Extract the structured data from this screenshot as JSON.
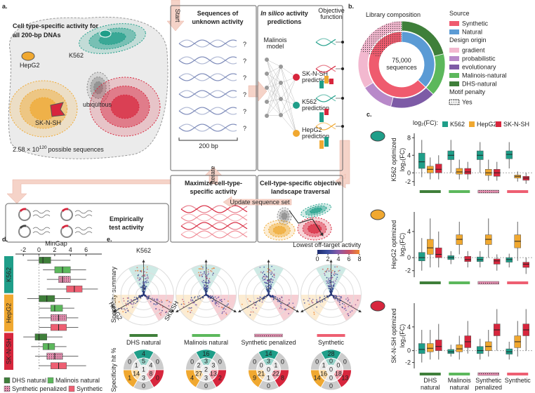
{
  "cells": [
    {
      "name": "K562",
      "color": "#1f9e89"
    },
    {
      "name": "HepG2",
      "color": "#f0a830"
    },
    {
      "name": "SK-N-SH",
      "color": "#d7263d"
    }
  ],
  "groups": [
    {
      "name": "DHS natural",
      "color": "#3f7f3a",
      "dotted": false
    },
    {
      "name": "Malinois natural",
      "color": "#5cb85c",
      "dotted": false
    },
    {
      "name": "Synthetic penalized",
      "color": "#e58fb0",
      "dotted": true
    },
    {
      "name": "Synthetic",
      "color": "#ee5f72",
      "dotted": false
    }
  ],
  "panels": {
    "a": {
      "label": "a.",
      "title_lines": [
        "Cell type-specific activity for",
        "all 200-bp DNAs"
      ],
      "cell_labels": [
        "K562",
        "HepG2",
        "ubiquitous",
        "SK-N-SH"
      ],
      "sequence_count": "2.58 × 10",
      "sequence_exponent": "120",
      "sequence_suffix": "possible sequences",
      "start": "Start",
      "unknown": {
        "title_lines": [
          "Sequences of",
          "unknown activity"
        ],
        "mark": "?",
        "length": "200 bp"
      },
      "in_silico": {
        "title_italic": "In silico",
        "title_rest": "activity",
        "title_line2": "predictions",
        "model_lines": [
          "Malinois",
          "model"
        ],
        "predictions": [
          [
            "SK-N-SH",
            "prediction"
          ],
          [
            "K562",
            "prediction"
          ],
          [
            "HepG2",
            "prediction"
          ]
        ],
        "objective_lines": [
          "Objective",
          "function"
        ]
      },
      "iterate": "Iterate",
      "maximize_lines": [
        "Maximize cell-type-",
        "specific activity"
      ],
      "landscape_lines": [
        "Cell-type-specific objective",
        "landscape traversal"
      ],
      "update": "Update sequence set",
      "test_lines": [
        "Empirically",
        "test activity"
      ]
    },
    "b": {
      "label": "b.",
      "title": "Library composition",
      "center_lines": [
        "75,000",
        "sequences"
      ],
      "source_title": "Source",
      "source": [
        {
          "name": "Synthetic",
          "color": "#ef5b6e",
          "value": 63
        },
        {
          "name": "Natural",
          "color": "#5b9bd5",
          "value": 37
        }
      ],
      "origin_title": "Design origin",
      "origin": [
        {
          "name": "gradient",
          "color": "#f2b8cf",
          "value": 34
        },
        {
          "name": "probabilistic",
          "color": "#b889c9",
          "value": 12
        },
        {
          "name": "evolutionary",
          "color": "#7d5ba6",
          "value": 17
        },
        {
          "name": "Malinois-natural",
          "color": "#5cb85c",
          "value": 16
        },
        {
          "name": "DHS-natural",
          "color": "#3f7f3a",
          "value": 21
        }
      ],
      "penalty_title": "Motif penalty",
      "penalty_label": "Yes",
      "penalty_value": 20
    },
    "c": {
      "label": "c.",
      "legend_title": "log₂(FC):",
      "unit": "log₂(FC)",
      "panels": [
        {
          "ylabel": "K562 optimized",
          "ylim": [
            -3,
            9
          ],
          "yticks": [
            -2,
            0,
            4,
            8
          ],
          "boxes": [
            [
              [
                -1,
                1,
                2.5,
                4.5,
                7.5
              ],
              [
                -1.5,
                0,
                0.8,
                1.5,
                3.5
              ],
              [
                -1.5,
                0,
                0.8,
                2,
                4
              ]
            ],
            [
              [
                0,
                3,
                4,
                5,
                7.5
              ],
              [
                -1.5,
                -0.3,
                0.2,
                1,
                3
              ],
              [
                -1.5,
                -0.3,
                0.2,
                1,
                2.5
              ]
            ],
            [
              [
                0,
                3,
                4,
                5,
                7
              ],
              [
                -1.8,
                -0.6,
                0,
                0.8,
                3
              ],
              [
                -1.8,
                -0.8,
                0,
                0.8,
                2.5
              ]
            ],
            [
              [
                1,
                3.2,
                4.2,
                5,
                7
              ],
              [
                -2,
                -1.2,
                -0.8,
                -0.5,
                0.3
              ],
              [
                -2.5,
                -1.7,
                -1.2,
                -0.8,
                0
              ]
            ]
          ]
        },
        {
          "ylabel": "HepG2 optimized",
          "ylim": [
            -3,
            7
          ],
          "yticks": [
            -2,
            0,
            4
          ],
          "boxes": [
            [
              [
                -2,
                -0.5,
                0,
                0.8,
                3
              ],
              [
                -1.5,
                0.5,
                1.5,
                2.8,
                6
              ],
              [
                -1.5,
                0,
                0.5,
                1.5,
                4
              ]
            ],
            [
              [
                -1,
                -0.3,
                0,
                0.3,
                1
              ],
              [
                0.5,
                2,
                2.8,
                3.5,
                5.5
              ],
              [
                -1.5,
                -0.6,
                -0.3,
                0.2,
                1
              ]
            ],
            [
              [
                -1.5,
                -0.6,
                -0.3,
                0.1,
                1
              ],
              [
                0,
                2,
                2.8,
                3.5,
                6
              ],
              [
                -2,
                -1,
                -0.5,
                -0.2,
                0.5
              ]
            ],
            [
              [
                -1.5,
                -0.7,
                -0.3,
                0,
                0.6
              ],
              [
                -0.5,
                1.5,
                2.5,
                3.5,
                5.5
              ],
              [
                -2.5,
                -1.5,
                -1,
                -0.7,
                0
              ]
            ]
          ]
        },
        {
          "ylabel": "SK-N-SH optimized",
          "ylim": [
            -3,
            8
          ],
          "yticks": [
            -2,
            0,
            4
          ],
          "boxes": [
            [
              [
                -2,
                -0.5,
                0.2,
                1.2,
                3.5
              ],
              [
                -1.5,
                -0.2,
                0.4,
                1.2,
                3.5
              ],
              [
                -1.5,
                0,
                0.7,
                1.8,
                4.5
              ]
            ],
            [
              [
                -1,
                -0.5,
                -0.2,
                0.2,
                1
              ],
              [
                -1.5,
                -0.2,
                0.3,
                1,
                2.5
              ],
              [
                -0.5,
                0.5,
                1.5,
                2.5,
                5
              ]
            ],
            [
              [
                -1.5,
                -0.5,
                0,
                0.7,
                2
              ],
              [
                -1,
                0,
                0.7,
                1.5,
                3.5
              ],
              [
                0,
                2.5,
                3.5,
                4.5,
                7
              ]
            ],
            [
              [
                -1.5,
                -0.6,
                -0.2,
                0.3,
                1.5
              ],
              [
                -1,
                0.5,
                1.5,
                2.5,
                5
              ],
              [
                0,
                2.5,
                3.5,
                4.5,
                7
              ]
            ]
          ]
        }
      ]
    },
    "d": {
      "label": "d.",
      "xlabel": "MinGap",
      "xlim": [
        -3,
        8
      ],
      "xticks": [
        -2,
        0,
        2,
        4,
        6
      ],
      "boxes": [
        [
          [
            -1.5,
            0,
            0.5,
            1.5,
            4
          ],
          [
            0.5,
            2,
            3,
            4,
            6
          ],
          [
            1,
            2.5,
            3,
            4,
            6
          ],
          [
            1,
            3.5,
            4.5,
            5.5,
            7.5
          ]
        ],
        [
          [
            -1.5,
            0,
            1,
            2,
            4
          ],
          [
            0,
            1.5,
            2,
            3,
            4.5
          ],
          [
            0,
            1.5,
            2.5,
            3.5,
            5
          ],
          [
            0,
            1.5,
            2.5,
            3.5,
            5
          ]
        ],
        [
          [
            -2,
            -0.5,
            0,
            1,
            3
          ],
          [
            -1,
            0.5,
            1.2,
            2,
            3.5
          ],
          [
            -0.5,
            1,
            2,
            3,
            5
          ],
          [
            0,
            1.5,
            2.5,
            3.5,
            6
          ]
        ]
      ]
    },
    "e": {
      "label": "e.",
      "summary_label": "Specificity summary",
      "hit_label": "Specificity hit %",
      "axis_labels": [
        "K562",
        "HepG2",
        "SKNSH"
      ],
      "colorbar": {
        "label": "Lowest off-target activity",
        "lim": [
          0,
          8
        ],
        "ticks": [
          0,
          2,
          4,
          6,
          8
        ],
        "colors": [
          "#1c2b6e",
          "#3b4fa0",
          "#8a5aa8",
          "#c8506a",
          "#f08a30"
        ]
      },
      "hits": [
        {
          "outer": [
            4,
            0,
            0,
            0,
            1,
            0
          ],
          "inner": [
            5,
            4,
            8,
            3,
            14,
            1
          ],
          "center": 1
        },
        {
          "outer": [
            16,
            0,
            2,
            0,
            4,
            0
          ],
          "inner": [
            3,
            3,
            13,
            3,
            27,
            2
          ],
          "center": 2
        },
        {
          "outer": [
            14,
            0,
            8,
            0,
            9,
            0
          ],
          "inner": [
            3,
            1,
            22,
            1,
            21,
            0
          ],
          "center": 0
        },
        {
          "outer": [
            28,
            0,
            13,
            0,
            14,
            0
          ],
          "inner": [
            0,
            0,
            18,
            0,
            16,
            1
          ],
          "center": 0
        }
      ]
    }
  }
}
